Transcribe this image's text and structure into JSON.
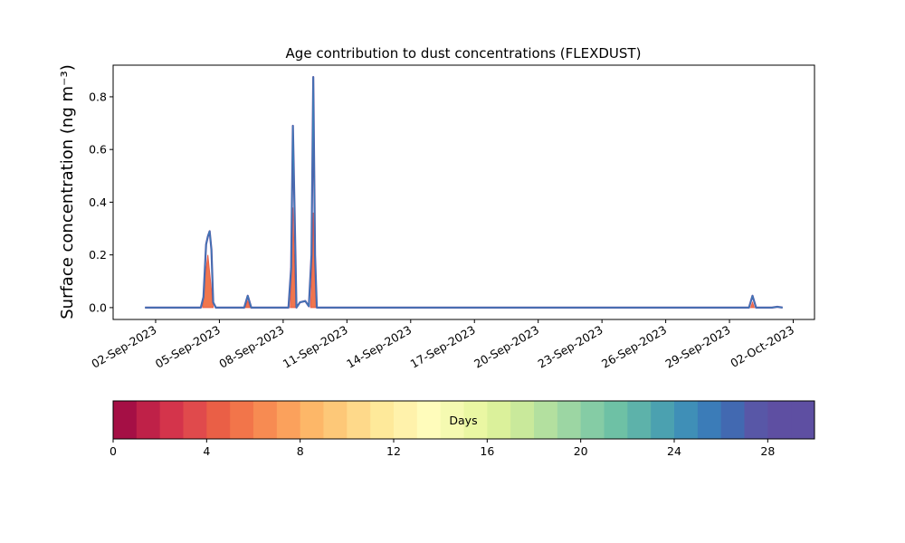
{
  "chart_data": {
    "type": "area",
    "title": "Age contribution to dust concentrations (FLEXDUST)",
    "ylabel": "Surface concentration (ng m⁻³)",
    "xlabel": "",
    "ylim": [
      -0.045,
      0.92
    ],
    "xlim": [
      "2023-08-31T00:00",
      "2023-10-03T00:00"
    ],
    "yticks": [
      0.0,
      0.2,
      0.4,
      0.6,
      0.8
    ],
    "ytick_labels": [
      "0.0",
      "0.2",
      "0.4",
      "0.6",
      "0.8"
    ],
    "xticks": [
      "2023-09-02",
      "2023-09-05",
      "2023-09-08",
      "2023-09-11",
      "2023-09-14",
      "2023-09-17",
      "2023-09-20",
      "2023-09-23",
      "2023-09-26",
      "2023-09-29",
      "2023-10-02"
    ],
    "xtick_labels": [
      "02-Sep-2023",
      "05-Sep-2023",
      "08-Sep-2023",
      "11-Sep-2023",
      "14-Sep-2023",
      "17-Sep-2023",
      "20-Sep-2023",
      "23-Sep-2023",
      "26-Sep-2023",
      "29-Sep-2023",
      "02-Oct-2023"
    ],
    "total_line": [
      {
        "x": "2023-09-01T12:00",
        "y": 0.0
      },
      {
        "x": "2023-09-03T23:00",
        "y": 0.0
      },
      {
        "x": "2023-09-04T03:00",
        "y": 0.0
      },
      {
        "x": "2023-09-04T06:00",
        "y": 0.04
      },
      {
        "x": "2023-09-04T09:00",
        "y": 0.24
      },
      {
        "x": "2023-09-04T11:00",
        "y": 0.27
      },
      {
        "x": "2023-09-04T13:00",
        "y": 0.29
      },
      {
        "x": "2023-09-04T15:00",
        "y": 0.22
      },
      {
        "x": "2023-09-04T17:00",
        "y": 0.02
      },
      {
        "x": "2023-09-04T20:00",
        "y": 0.0
      },
      {
        "x": "2023-09-06T04:00",
        "y": 0.0
      },
      {
        "x": "2023-09-06T08:00",
        "y": 0.045
      },
      {
        "x": "2023-09-06T12:00",
        "y": 0.0
      },
      {
        "x": "2023-09-08T06:00",
        "y": 0.0
      },
      {
        "x": "2023-09-08T09:00",
        "y": 0.15
      },
      {
        "x": "2023-09-08T11:00",
        "y": 0.69
      },
      {
        "x": "2023-09-08T13:00",
        "y": 0.35
      },
      {
        "x": "2023-09-08T15:00",
        "y": 0.0
      },
      {
        "x": "2023-09-08T19:00",
        "y": 0.02
      },
      {
        "x": "2023-09-09T01:00",
        "y": 0.025
      },
      {
        "x": "2023-09-09T05:00",
        "y": 0.005
      },
      {
        "x": "2023-09-09T08:00",
        "y": 0.2
      },
      {
        "x": "2023-09-09T10:00",
        "y": 0.875
      },
      {
        "x": "2023-09-09T12:00",
        "y": 0.2
      },
      {
        "x": "2023-09-09T14:00",
        "y": 0.0
      },
      {
        "x": "2023-09-29T22:00",
        "y": 0.0
      },
      {
        "x": "2023-09-30T02:00",
        "y": 0.045
      },
      {
        "x": "2023-09-30T06:00",
        "y": 0.0
      },
      {
        "x": "2023-10-01T00:00",
        "y": 0.0
      },
      {
        "x": "2023-10-01T06:00",
        "y": 0.003
      },
      {
        "x": "2023-10-01T12:00",
        "y": 0.0
      }
    ],
    "age_fill_series": [
      {
        "points": [
          {
            "x": "2023-09-04T05:00",
            "y": 0.0
          },
          {
            "x": "2023-09-04T08:00",
            "y": 0.12
          },
          {
            "x": "2023-09-04T11:00",
            "y": 0.2
          },
          {
            "x": "2023-09-04T14:00",
            "y": 0.1
          },
          {
            "x": "2023-09-04T17:00",
            "y": 0.0
          }
        ]
      },
      {
        "points": [
          {
            "x": "2023-09-06T05:00",
            "y": 0.0
          },
          {
            "x": "2023-09-06T08:00",
            "y": 0.025
          },
          {
            "x": "2023-09-06T11:00",
            "y": 0.0
          }
        ]
      },
      {
        "points": [
          {
            "x": "2023-09-08T08:00",
            "y": 0.0
          },
          {
            "x": "2023-09-08T10:00",
            "y": 0.2
          },
          {
            "x": "2023-09-08T11:00",
            "y": 0.38
          },
          {
            "x": "2023-09-08T13:00",
            "y": 0.12
          },
          {
            "x": "2023-09-08T15:00",
            "y": 0.0
          }
        ]
      },
      {
        "points": [
          {
            "x": "2023-09-09T07:00",
            "y": 0.0
          },
          {
            "x": "2023-09-09T09:00",
            "y": 0.2
          },
          {
            "x": "2023-09-09T10:00",
            "y": 0.36
          },
          {
            "x": "2023-09-09T12:00",
            "y": 0.1
          },
          {
            "x": "2023-09-09T14:00",
            "y": 0.0
          }
        ]
      },
      {
        "points": [
          {
            "x": "2023-09-30T00:00",
            "y": 0.0
          },
          {
            "x": "2023-09-30T02:00",
            "y": 0.02
          },
          {
            "x": "2023-09-30T04:00",
            "y": 0.0
          }
        ]
      }
    ],
    "colorbar": {
      "label": "Days",
      "min": 0,
      "max": 30,
      "ticks": [
        0,
        4,
        8,
        12,
        16,
        20,
        24,
        28
      ],
      "tick_labels": [
        "0",
        "4",
        "8",
        "12",
        "16",
        "20",
        "24",
        "28"
      ],
      "colors": [
        "#a50f45",
        "#bf2148",
        "#d4344b",
        "#e04a4c",
        "#ea5f46",
        "#f2754a",
        "#f78b52",
        "#fba15c",
        "#fdb768",
        "#fdc878",
        "#fed98a",
        "#fee99a",
        "#fff2ab",
        "#fffcbb",
        "#f5fab1",
        "#eaf7a3",
        "#dbf19b",
        "#c9e99b",
        "#b3e09f",
        "#9cd6a3",
        "#85cca5",
        "#6ec1a5",
        "#5db2aa",
        "#4ba1b0",
        "#3f8fb7",
        "#3b7cb8",
        "#4269b1",
        "#5857a7",
        "#5e4fa2",
        "#5e4fa2"
      ]
    },
    "legend": "colorbar-bottom",
    "grid": false
  }
}
